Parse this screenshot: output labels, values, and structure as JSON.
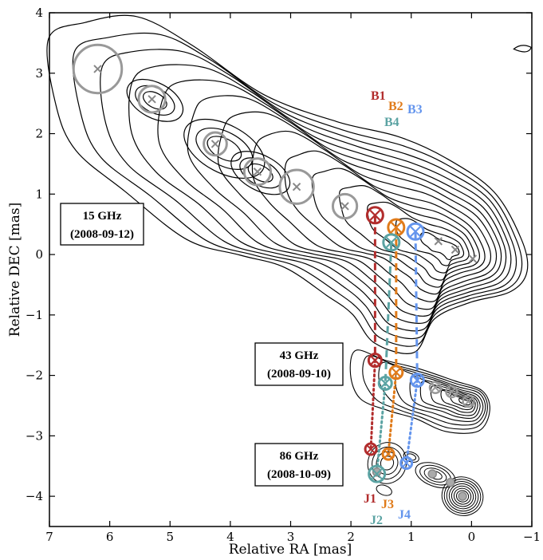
{
  "chart_data": {
    "type": "scatter",
    "xlabel": "Relative RA [mas]",
    "ylabel": "Relative DEC [mas]",
    "xlim": [
      7,
      -1
    ],
    "ylim": [
      -4.5,
      4
    ],
    "x_ticks": [
      7,
      6,
      5,
      4,
      3,
      2,
      1,
      0,
      -1
    ],
    "y_ticks": [
      4,
      3,
      2,
      1,
      0,
      -1,
      -2,
      -3,
      -4
    ],
    "x_tick_labels": [
      "7",
      "6",
      "5",
      "4",
      "3",
      "2",
      "1",
      "0",
      "−1"
    ],
    "y_tick_labels": [
      "4",
      "3",
      "2",
      "1",
      "0",
      "−1",
      "−2",
      "−3",
      "−4"
    ],
    "panels": [
      {
        "line1": "15 GHz",
        "line2": "(2008-09-12)"
      },
      {
        "line1": "43 GHz",
        "line2": "(2008-09-10)"
      },
      {
        "line1": "86 GHz",
        "line2": "(2008-10-09)"
      }
    ],
    "component_labels": [
      {
        "text": "B1",
        "color": "#b22d2d"
      },
      {
        "text": "B2",
        "color": "#e07b1a"
      },
      {
        "text": "B3",
        "color": "#6495ed"
      },
      {
        "text": "B4",
        "color": "#5ba3a3"
      },
      {
        "text": "J1",
        "color": "#b22d2d"
      },
      {
        "text": "J3",
        "color": "#e07b1a"
      },
      {
        "text": "J2",
        "color": "#5ba3a3"
      },
      {
        "text": "J4",
        "color": "#6495ed"
      }
    ],
    "components_15GHz_gray": [
      {
        "x": 6.2,
        "y": 3.07,
        "r": 0.4
      },
      {
        "x": 5.3,
        "y": 2.57,
        "r": 0.22
      },
      {
        "x": 4.25,
        "y": 1.83,
        "r": 0.19
      },
      {
        "x": 3.55,
        "y": 1.37,
        "r": 0.22
      },
      {
        "x": 2.9,
        "y": 1.12,
        "r": 0.28
      },
      {
        "x": 2.1,
        "y": 0.8,
        "r": 0.2
      },
      {
        "x": 0.55,
        "y": 0.22,
        "r": 0.06
      },
      {
        "x": 0.27,
        "y": 0.08,
        "r": 0.04
      },
      {
        "x": -0.02,
        "y": -0.07,
        "r": 0.03
      }
    ],
    "components_15GHz_colored": [
      {
        "name": "B1",
        "x": 1.6,
        "y": 0.65,
        "color": "#b22d2d"
      },
      {
        "name": "B2",
        "x": 1.25,
        "y": 0.45,
        "color": "#e07b1a"
      },
      {
        "name": "B3",
        "x": 0.93,
        "y": 0.38,
        "color": "#6495ed"
      },
      {
        "name": "B4",
        "x": 1.33,
        "y": 0.2,
        "color": "#5ba3a3"
      }
    ],
    "components_43GHz_gray": [
      {
        "x": 0.6,
        "y": -2.2,
        "r": 0.08
      },
      {
        "x": 0.33,
        "y": -2.27,
        "r": 0.08
      },
      {
        "x": 0.05,
        "y": -2.43,
        "r": 0.07
      }
    ],
    "components_43GHz_colored": [
      {
        "name": "B1",
        "x": 1.6,
        "y": -1.75,
        "color": "#b22d2d"
      },
      {
        "name": "B2",
        "x": 1.25,
        "y": -1.95,
        "color": "#e07b1a"
      },
      {
        "name": "B3",
        "x": 0.9,
        "y": -2.08,
        "color": "#6495ed"
      },
      {
        "name": "B4",
        "x": 1.43,
        "y": -2.13,
        "color": "#5ba3a3"
      }
    ],
    "components_86GHz_gray": [
      {
        "x": 1.57,
        "y": -3.6,
        "r": 0.07
      },
      {
        "x": 0.65,
        "y": -3.63,
        "r": 0.06
      },
      {
        "x": 0.35,
        "y": -3.77,
        "r": 0.05
      },
      {
        "x": 0.15,
        "y": -4.0,
        "r": 0.06
      }
    ],
    "components_86GHz_colored": [
      {
        "name": "J1",
        "x": 1.67,
        "y": -3.22,
        "color": "#b22d2d"
      },
      {
        "name": "J3",
        "x": 1.38,
        "y": -3.3,
        "color": "#e07b1a"
      },
      {
        "name": "J4",
        "x": 1.08,
        "y": -3.45,
        "color": "#6495ed"
      },
      {
        "name": "J2",
        "x": 1.57,
        "y": -3.63,
        "color": "#5ba3a3"
      }
    ],
    "tracks_15_to_43": [
      {
        "name": "B1",
        "from": [
          1.6,
          0.65
        ],
        "to": [
          1.6,
          -1.75
        ],
        "color": "#b22d2d"
      },
      {
        "name": "B2",
        "from": [
          1.25,
          0.45
        ],
        "to": [
          1.25,
          -1.95
        ],
        "color": "#e07b1a"
      },
      {
        "name": "B4",
        "from": [
          1.33,
          0.2
        ],
        "to": [
          1.43,
          -2.13
        ],
        "color": "#5ba3a3"
      },
      {
        "name": "B3",
        "from": [
          0.93,
          0.38
        ],
        "to": [
          0.9,
          -2.08
        ],
        "color": "#6495ed"
      }
    ],
    "tracks_43_to_86": [
      {
        "name": "J1",
        "from": [
          1.6,
          -1.75
        ],
        "to": [
          1.67,
          -3.22
        ],
        "color": "#b22d2d"
      },
      {
        "name": "J3",
        "from": [
          1.25,
          -1.95
        ],
        "to": [
          1.38,
          -3.3
        ],
        "color": "#e07b1a"
      },
      {
        "name": "J2",
        "from": [
          1.43,
          -2.13
        ],
        "to": [
          1.57,
          -3.63
        ],
        "color": "#5ba3a3"
      },
      {
        "name": "J4",
        "from": [
          0.9,
          -2.08
        ],
        "to": [
          1.08,
          -3.45
        ],
        "color": "#6495ed"
      }
    ]
  }
}
